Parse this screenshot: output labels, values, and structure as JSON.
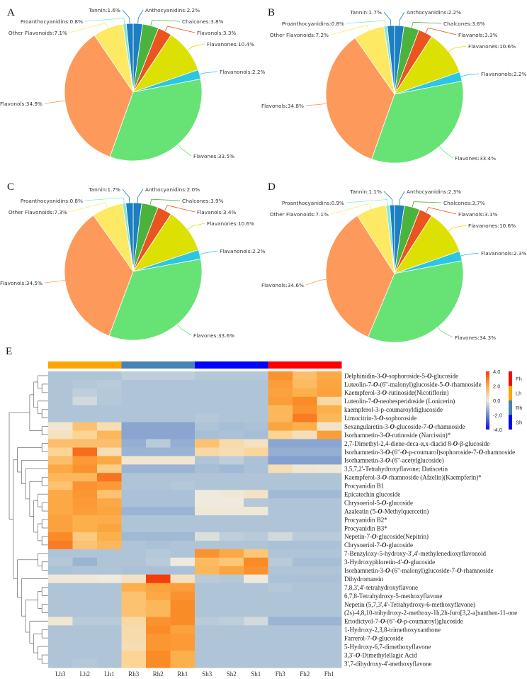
{
  "chart_data": [
    {
      "type": "pie",
      "panel": "A",
      "categories": [
        "Anthocyanidins",
        "Chalcones",
        "Flavanols",
        "Flavanones",
        "Flavanonols",
        "Flavones",
        "Flavonols",
        "Other Flavonoids",
        "Proanthocyanidins",
        "Tannin"
      ],
      "values": [
        2.2,
        3.8,
        3.3,
        10.4,
        2.2,
        33.5,
        34.9,
        7.1,
        0.8,
        1.6
      ],
      "unit": "%"
    },
    {
      "type": "pie",
      "panel": "B",
      "categories": [
        "Anthocyanidins",
        "Chalcones",
        "Flavanols",
        "Flavanones",
        "Flavanonols",
        "Flavones",
        "Flavonols",
        "Other Flavonoids",
        "Proanthocyanidins",
        "Tannin"
      ],
      "values": [
        2.2,
        3.6,
        3.3,
        10.6,
        2.2,
        33.4,
        34.8,
        7.2,
        0.8,
        1.7
      ],
      "unit": "%"
    },
    {
      "type": "pie",
      "panel": "C",
      "categories": [
        "Anthocyanidins",
        "Chalcones",
        "Flavanols",
        "Flavanones",
        "Flavanonols",
        "Flavones",
        "Flavonols",
        "Other Flavonoids",
        "Proanthocyanidins",
        "Tannin"
      ],
      "values": [
        2.0,
        3.9,
        3.4,
        10.6,
        2.2,
        33.6,
        34.5,
        7.3,
        0.8,
        1.7
      ],
      "unit": "%"
    },
    {
      "type": "pie",
      "panel": "D",
      "categories": [
        "Anthocyanidins",
        "Chalcones",
        "Flavanols",
        "Flavanones",
        "Flavanonols",
        "Flavones",
        "Flavonols",
        "Other Flavonoids",
        "Proanthocyanidins",
        "Tannin"
      ],
      "values": [
        2.3,
        3.7,
        3.1,
        10.6,
        2.3,
        34.3,
        34.6,
        7.1,
        0.9,
        1.1
      ],
      "unit": "%"
    },
    {
      "type": "heatmap",
      "panel": "E",
      "columns": [
        "Lh3",
        "Lh2",
        "Lh1",
        "Rh3",
        "Rh2",
        "Rh1",
        "Sh3",
        "Sh2",
        "Sh1",
        "Fh3",
        "Fh2",
        "Fh1"
      ],
      "column_groups": [
        "Lh",
        "Lh",
        "Lh",
        "Rh",
        "Rh",
        "Rh",
        "Sh",
        "Sh",
        "Sh",
        "Fh",
        "Fh",
        "Fh"
      ],
      "scale": {
        "min": -4.0,
        "max": 4.0,
        "ticks": [
          "4.0",
          "2.0",
          "0.0",
          "-2.0",
          "-4.0"
        ]
      },
      "group_legend": [
        {
          "name": "Fh",
          "color": "#ff0000"
        },
        {
          "name": "Lh",
          "color": "#ffa500"
        },
        {
          "name": "Rh",
          "color": "#4682b4"
        },
        {
          "name": "Sh",
          "color": "#0000ff"
        }
      ],
      "rows": [
        {
          "name": "Delphinidin-3-O-sophoroside-5-O-glucoside",
          "values": [
            -0.8,
            -0.8,
            -0.8,
            -0.5,
            -0.5,
            -0.5,
            -0.7,
            -0.7,
            -0.7,
            2.8,
            1.6,
            2.2
          ]
        },
        {
          "name": "Luteolin-7-O-(6\"-malonyl)glucoside-5-O-rhamnoside",
          "values": [
            -0.8,
            -0.7,
            -0.6,
            -0.8,
            -0.8,
            -0.8,
            -0.8,
            -0.8,
            -0.8,
            2.5,
            1.7,
            2.3
          ]
        },
        {
          "name": "Kaempferol-3-O-rutinoside(Nicotiflorin)",
          "values": [
            -0.8,
            -0.5,
            -0.7,
            -0.8,
            -0.8,
            -0.8,
            -0.8,
            -0.8,
            -0.8,
            2.4,
            2.0,
            2.4
          ]
        },
        {
          "name": "Luteolin-7-O-neohesperidoside (Lonicerin)",
          "values": [
            -0.8,
            -0.3,
            -0.7,
            -0.8,
            -0.8,
            -0.8,
            -0.8,
            -0.8,
            -0.8,
            2.5,
            3.0,
            0.8
          ]
        },
        {
          "name": "kaempferol-3-p-coumaroyldiglucoside",
          "values": [
            -0.8,
            -0.8,
            -0.8,
            -0.8,
            -0.8,
            -0.8,
            -0.8,
            -0.8,
            -0.8,
            1.8,
            2.8,
            2.0
          ]
        },
        {
          "name": "Limocitrin-3-O-sophoroside",
          "values": [
            -0.8,
            -0.8,
            -0.8,
            -0.8,
            -0.8,
            -0.8,
            -0.7,
            -0.8,
            -0.8,
            1.8,
            3.2,
            1.8
          ]
        },
        {
          "name": "Sexangularetin-3-O-glucoside-7-O-rhamnoside",
          "values": [
            0.2,
            1.5,
            0.6,
            -1.5,
            -1.5,
            -1.5,
            -0.8,
            -1.0,
            -0.9,
            2.3,
            2.0,
            0.3
          ]
        },
        {
          "name": "Isorhamnetin-3-O-rutinoside (Narcissin)*",
          "values": [
            0.4,
            1.0,
            1.8,
            -1.5,
            -1.5,
            -1.5,
            -1.0,
            -0.9,
            -1.0,
            1.0,
            0.5,
            2.5
          ]
        },
        {
          "name": "2,7-Dimethyl-2,4-diene-deca-α,x-diacid 8-O-β-glucoside",
          "values": [
            1.6,
            1.6,
            1.6,
            -1.3,
            -0.6,
            -1.3,
            1.5,
            0.7,
            0.4,
            -1.5,
            -1.5,
            -1.5
          ]
        },
        {
          "name": "Isorhamnetin-3-O-(6\"-O-p-coumarol)sophoroside-7-O-rhamnoside",
          "values": [
            1.0,
            3.4,
            0.6,
            -1.2,
            -1.2,
            -1.2,
            0.8,
            0.6,
            0.9,
            -1.3,
            -1.3,
            -1.3
          ]
        },
        {
          "name": "Isorhamnetin-3-O-(6\"-acetylglucoside)",
          "values": [
            1.6,
            2.6,
            2.2,
            0.2,
            0.2,
            0.2,
            -0.8,
            -0.5,
            -0.9,
            -1.6,
            -1.6,
            -1.6
          ]
        },
        {
          "name": "3,5,7,2'-Tetrahydroxyflavone; Datiscetin",
          "values": [
            2.2,
            2.8,
            1.2,
            -1.2,
            -1.2,
            -1.2,
            -1.0,
            -1.1,
            -0.9,
            0.6,
            0.2,
            0.1
          ]
        },
        {
          "name": "Kaempferol-3-O-rhamnoside (Afzelin)(Kaempferin)*",
          "values": [
            1.8,
            1.8,
            3.3,
            -0.8,
            -0.8,
            -0.8,
            -0.8,
            -0.8,
            -0.8,
            -0.8,
            -0.8,
            -0.8
          ]
        },
        {
          "name": "Procyanidin B1",
          "values": [
            1.5,
            2.8,
            2.6,
            -0.8,
            -0.8,
            -0.7,
            -0.8,
            -0.8,
            -0.8,
            -0.8,
            -0.8,
            -0.8
          ]
        },
        {
          "name": "Epicatechin glucoside",
          "values": [
            2.2,
            2.7,
            1.5,
            -0.9,
            -0.9,
            -0.9,
            0.0,
            0.1,
            0.3,
            -1.1,
            -1.1,
            -1.1
          ]
        },
        {
          "name": "Chrysoeriol-5-O-glucoside",
          "values": [
            2.2,
            2.6,
            2.2,
            -0.9,
            -0.9,
            -0.9,
            0.0,
            0.0,
            -0.7,
            -0.8,
            -0.8,
            -0.8
          ]
        },
        {
          "name": "Azaleatin (5-O-Methylquercetin)",
          "values": [
            2.2,
            2.5,
            2.3,
            -1.2,
            -1.2,
            -1.2,
            0.1,
            0.1,
            0.1,
            -0.8,
            -0.8,
            -0.8
          ]
        },
        {
          "name": "Procyanidin B2*",
          "values": [
            2.4,
            2.0,
            2.1,
            -0.8,
            -0.8,
            -0.8,
            -0.8,
            -0.8,
            -0.8,
            -0.8,
            -0.8,
            -0.8
          ]
        },
        {
          "name": "Procyanidin B3*",
          "values": [
            2.4,
            2.0,
            2.3,
            -0.8,
            -0.8,
            -0.8,
            -0.8,
            -0.8,
            -0.8,
            -0.8,
            -0.8,
            -0.8
          ]
        },
        {
          "name": "Nepetin-7-O-glucoside(Nepitrin)",
          "values": [
            3.0,
            1.3,
            2.0,
            -1.1,
            -1.1,
            -1.1,
            -0.2,
            -0.5,
            -0.6,
            -0.3,
            -0.6,
            -0.6
          ]
        },
        {
          "name": "Chrysoeriol-7-O-glucoside",
          "values": [
            3.2,
            1.5,
            1.8,
            -0.8,
            -0.9,
            -0.8,
            -0.8,
            -0.8,
            -0.8,
            -0.9,
            -0.9,
            -0.9
          ]
        },
        {
          "name": "7-Benzyloxy-5-hydroxy-3',4'-methylenedioxyflavonoid",
          "values": [
            -0.8,
            -0.8,
            -0.8,
            -0.8,
            -0.7,
            -0.8,
            2.8,
            2.2,
            1.4,
            -0.8,
            -0.8,
            -0.8
          ]
        },
        {
          "name": "3-Hydroxyphloretin-4'-O-glucoside",
          "values": [
            -0.7,
            -1.2,
            -0.8,
            -0.8,
            -0.6,
            0.0,
            1.7,
            1.4,
            3.0,
            -0.6,
            -1.0,
            -1.0
          ]
        },
        {
          "name": "Isorhamnetin-3-O-(6\"-malonyl)glucoside-7-O-rhamnoside",
          "values": [
            -0.9,
            -0.8,
            -0.8,
            -0.9,
            -0.9,
            -0.9,
            1.8,
            2.3,
            2.8,
            -0.8,
            -0.8,
            -0.8
          ]
        },
        {
          "name": "Dihydromarein",
          "values": [
            0.1,
            0.1,
            0.0,
            0.4,
            4.0,
            0.4,
            -0.6,
            -0.7,
            0.0,
            -0.9,
            -0.9,
            -0.9
          ]
        },
        {
          "name": "7,8,3',4'-tetrahydroxyflavone",
          "values": [
            -0.8,
            -0.8,
            -0.8,
            2.0,
            2.3,
            2.5,
            -0.8,
            -0.8,
            -0.8,
            -0.7,
            -0.8,
            -0.8
          ]
        },
        {
          "name": "6,7,8-Tetrahydroxy-5-methoxyflavone",
          "values": [
            -0.8,
            -0.8,
            -0.8,
            1.5,
            2.2,
            2.8,
            -0.8,
            -0.8,
            -0.8,
            -0.8,
            -0.8,
            -0.8
          ]
        },
        {
          "name": "Nepetin (5,7,3',4'-Tetrahydroxy-6-methoxyflavone)",
          "values": [
            -0.8,
            -0.8,
            -0.8,
            1.5,
            1.8,
            3.0,
            -0.8,
            -0.8,
            -0.8,
            -0.8,
            -0.8,
            -0.8
          ]
        },
        {
          "name": "(2s)-4,8,10-trihydroxy-2-methoxy-1h,2h-furo[3,2-a]xanthen-11-one",
          "values": [
            -0.8,
            -0.8,
            -0.8,
            1.5,
            1.8,
            3.0,
            -0.8,
            -0.8,
            -0.8,
            -0.8,
            -0.8,
            -0.8
          ]
        },
        {
          "name": "Eriodictyol-7-O-(6\"-O-p-coumaroyl)glucoside",
          "values": [
            0.2,
            -0.6,
            -0.6,
            0.8,
            2.8,
            3.0,
            -0.6,
            -0.5,
            -0.3,
            -1.2,
            -1.2,
            -1.2
          ]
        },
        {
          "name": "1-Hydroxy-2,3,8-trimethoxyxanthone",
          "values": [
            -0.8,
            -0.8,
            -0.8,
            0.7,
            3.0,
            2.4,
            -0.8,
            -0.8,
            -0.8,
            -0.8,
            -0.8,
            -0.8
          ]
        },
        {
          "name": "Farrerol-7-O-glucoside",
          "values": [
            -0.8,
            -0.8,
            -0.8,
            0.7,
            2.7,
            2.6,
            -0.8,
            -0.8,
            -0.8,
            -0.8,
            -0.8,
            -0.8
          ]
        },
        {
          "name": "5-Hydroxy-6,7-dimethoxyflavone",
          "values": [
            -0.8,
            -0.8,
            -0.8,
            0.6,
            2.7,
            2.6,
            -0.8,
            -0.8,
            -0.8,
            -0.8,
            -0.8,
            -0.8
          ]
        },
        {
          "name": "3,3'-O-Dimethylellagic Acid",
          "values": [
            -0.8,
            -0.8,
            -0.8,
            1.0,
            3.0,
            2.0,
            -0.8,
            -0.8,
            -0.8,
            -0.8,
            -0.8,
            -0.8
          ]
        },
        {
          "name": "3',7-dihydroxy-4'-methoxyflavone",
          "values": [
            -0.8,
            -0.7,
            -0.8,
            1.0,
            3.0,
            2.0,
            -0.8,
            -0.8,
            -0.8,
            -0.8,
            -0.8,
            -0.8
          ]
        }
      ]
    }
  ],
  "panel_labels": [
    "A",
    "B",
    "C",
    "D",
    "E"
  ],
  "colors": {
    "Anthocyanidins": "#1b7fc1",
    "Chalcones": "#4bb33c",
    "Flavanols": "#e9541f",
    "Flavanones": "#dde003",
    "Flavanonols": "#2ac6e3",
    "Flavones": "#66e374",
    "Flavonols": "#fd9a5b",
    "Other Flavonoids": "#fde963",
    "Proanthocyanidins": "#86e8d8",
    "Tannin": "#1b7fc1"
  }
}
